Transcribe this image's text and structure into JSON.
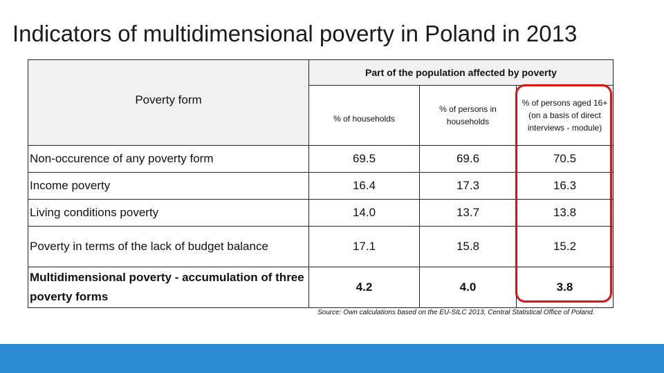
{
  "title": "Indicators of multidimensional poverty in Poland in 2013",
  "table": {
    "col_group_header": "Part of the population affected by poverty",
    "row_header": "Poverty form",
    "columns": [
      "% of households",
      "% of persons in households",
      "% of persons aged 16+ (on a basis of direct interviews - module)"
    ],
    "rows": [
      {
        "label": "Non-occurence of any poverty form",
        "values": [
          "69.5",
          "69.6",
          "70.5"
        ]
      },
      {
        "label": "Income poverty",
        "values": [
          "16.4",
          "17.3",
          "16.3"
        ]
      },
      {
        "label": "Living conditions poverty",
        "values": [
          "14.0",
          "13.7",
          "13.8"
        ]
      },
      {
        "label": "Poverty in terms of the lack of budget balance",
        "values": [
          "17.1",
          "15.8",
          "15.2"
        ]
      },
      {
        "label": "Multidimensional poverty - accumulation of three poverty forms",
        "values": [
          "4.2",
          "4.0",
          "3.8"
        ]
      }
    ]
  },
  "source": "Source: Own calculations based on the EU-SILC 2013, Central Statistical Office of Poland.",
  "colors": {
    "highlight": "#e01010",
    "footer_bar": "#2b8ad1",
    "header_bg": "#f1f1f1"
  }
}
